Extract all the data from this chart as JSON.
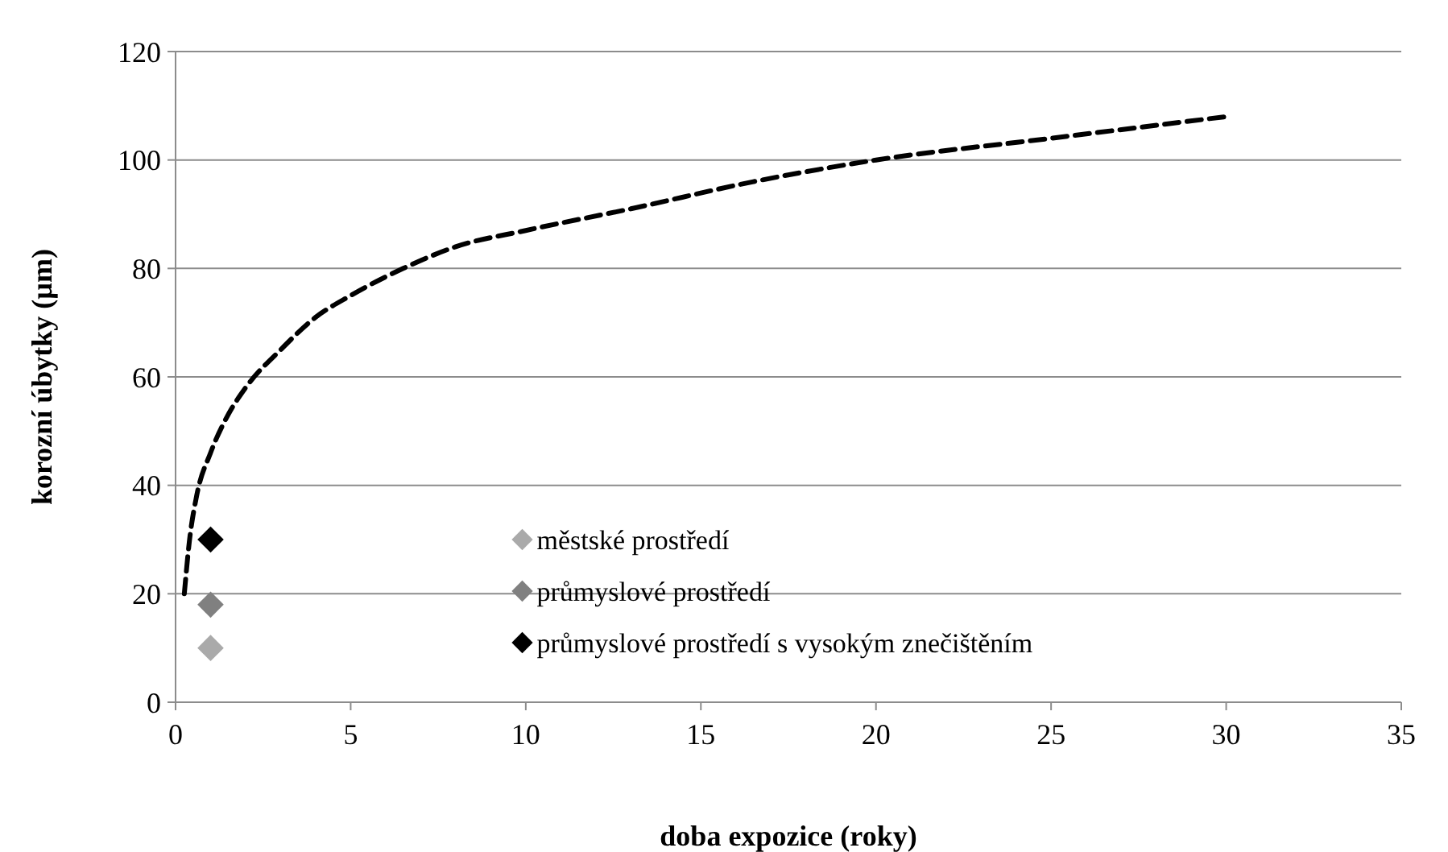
{
  "chart_data": {
    "type": "scatter",
    "xlabel": "doba expozice (roky)",
    "ylabel": "korozní úbytky (µm)",
    "xlim": [
      0,
      35
    ],
    "ylim": [
      0,
      120
    ],
    "xticks": [
      0,
      5,
      10,
      15,
      20,
      25,
      30,
      35
    ],
    "yticks": [
      0,
      20,
      40,
      60,
      80,
      100,
      120
    ],
    "grid": "y",
    "legend": "bottom",
    "marker": "diamond",
    "series": [
      {
        "type": "line",
        "color": "#000000",
        "line_style": "dashed",
        "marker": "none",
        "x": [
          0.25,
          0.4,
          0.6,
          1,
          1.5,
          2,
          3,
          4,
          5,
          6.5,
          8,
          10,
          13,
          16.5,
          20,
          25,
          30
        ],
        "values": [
          20,
          30,
          38,
          46,
          53,
          58,
          65,
          71,
          75,
          80,
          84,
          87,
          91,
          96,
          100,
          104,
          108
        ]
      },
      {
        "name": "městské prostředí",
        "color": "#aaaaaa",
        "x": [
          1
        ],
        "values": [
          10
        ]
      },
      {
        "name": "průmyslové prostředí",
        "color": "#808080",
        "x": [
          1
        ],
        "values": [
          18
        ]
      },
      {
        "name": "průmyslové prostředí s vysokým znečištěním",
        "color": "#000000",
        "x": [
          1
        ],
        "values": [
          30
        ]
      }
    ]
  }
}
